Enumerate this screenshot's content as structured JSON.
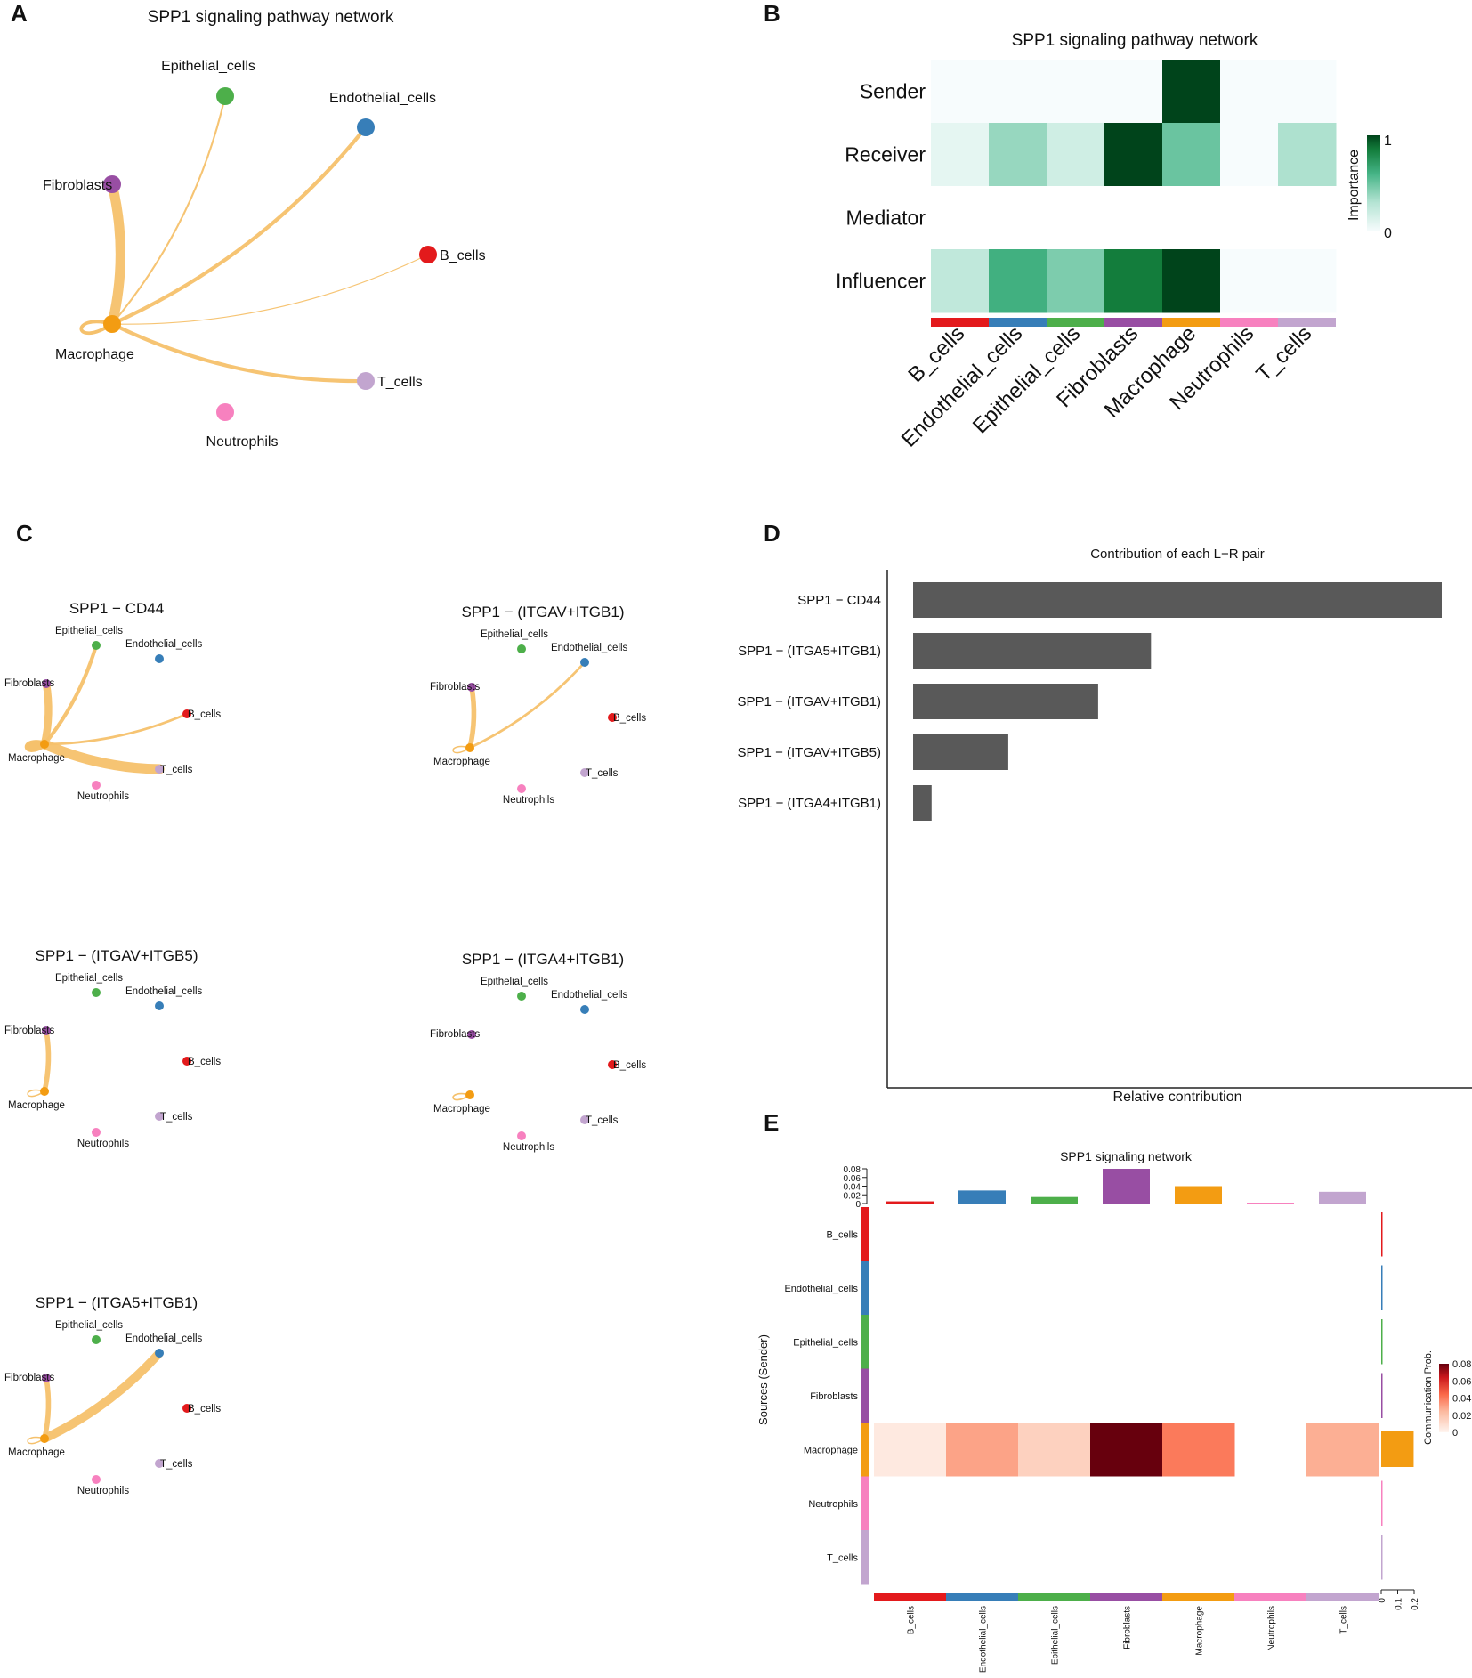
{
  "colors": {
    "B_cells": "#e31a1c",
    "Endothelial_cells": "#377eb8",
    "Epithelial_cells": "#4daf4a",
    "Fibroblasts": "#984ea3",
    "Macrophage": "#f39c12",
    "Neutrophils": "#f781bf",
    "T_cells": "#c2a5cf",
    "edge": "#f5c16c",
    "bar": "#595959"
  },
  "panel_letters": {
    "A": "A",
    "B": "B",
    "C": "C",
    "D": "D",
    "E": "E"
  },
  "chart_data": [
    {
      "panel": "A",
      "type": "network",
      "title": "SPP1 signaling pathway network",
      "nodes": [
        "Epithelial_cells",
        "Endothelial_cells",
        "Fibroblasts",
        "B_cells",
        "Macrophage",
        "T_cells",
        "Neutrophils"
      ],
      "edges": [
        {
          "source": "Macrophage",
          "target": "Fibroblasts",
          "weight": 0.08
        },
        {
          "source": "Macrophage",
          "target": "Endothelial_cells",
          "weight": 0.03
        },
        {
          "source": "Macrophage",
          "target": "Epithelial_cells",
          "weight": 0.015
        },
        {
          "source": "Macrophage",
          "target": "B_cells",
          "weight": 0.008
        },
        {
          "source": "Macrophage",
          "target": "T_cells",
          "weight": 0.03
        },
        {
          "source": "Macrophage",
          "target": "Macrophage",
          "weight": 0.045
        }
      ]
    },
    {
      "panel": "B",
      "type": "heatmap",
      "title": "SPP1 signaling pathway network",
      "rows": [
        "Sender",
        "Receiver",
        "Mediator",
        "Influencer"
      ],
      "columns": [
        "B_cells",
        "Endothelial_cells",
        "Epithelial_cells",
        "Fibroblasts",
        "Macrophage",
        "Neutrophils",
        "T_cells"
      ],
      "values": [
        [
          0,
          0,
          0,
          0,
          1,
          0,
          0
        ],
        [
          0.08,
          0.38,
          0.18,
          1,
          0.5,
          0,
          0.32
        ],
        [
          0,
          0,
          0,
          0,
          0,
          0,
          0
        ],
        [
          0.25,
          0.62,
          0.45,
          0.85,
          1,
          0,
          0
        ]
      ],
      "legend_title": "Importance",
      "legend_min": "0",
      "legend_max": "1"
    },
    {
      "panel": "C",
      "type": "network_grid",
      "subplots": [
        {
          "title": "SPP1 − CD44",
          "edges": [
            {
              "source": "Macrophage",
              "target": "Fibroblasts",
              "weight": 0.06
            },
            {
              "source": "Macrophage",
              "target": "Epithelial_cells",
              "weight": 0.03
            },
            {
              "source": "Macrophage",
              "target": "B_cells",
              "weight": 0.02
            },
            {
              "source": "Macrophage",
              "target": "T_cells",
              "weight": 0.08
            },
            {
              "source": "Macrophage",
              "target": "Macrophage",
              "weight": 0.08
            }
          ]
        },
        {
          "title": "SPP1 − (ITGAV+ITGB1)",
          "edges": [
            {
              "source": "Macrophage",
              "target": "Fibroblasts",
              "weight": 0.04
            },
            {
              "source": "Macrophage",
              "target": "Endothelial_cells",
              "weight": 0.02
            },
            {
              "source": "Macrophage",
              "target": "Macrophage",
              "weight": 0.01
            }
          ]
        },
        {
          "title": "SPP1 − (ITGAV+ITGB5)",
          "edges": [
            {
              "source": "Macrophage",
              "target": "Fibroblasts",
              "weight": 0.04
            },
            {
              "source": "Macrophage",
              "target": "Macrophage",
              "weight": 0.01
            }
          ]
        },
        {
          "title": "SPP1 − (ITGA4+ITGB1)",
          "edges": [
            {
              "source": "Macrophage",
              "target": "Macrophage",
              "weight": 0.02
            }
          ]
        },
        {
          "title": "SPP1 − (ITGA5+ITGB1)",
          "edges": [
            {
              "source": "Macrophage",
              "target": "Fibroblasts",
              "weight": 0.04
            },
            {
              "source": "Macrophage",
              "target": "Endothelial_cells",
              "weight": 0.07
            },
            {
              "source": "Macrophage",
              "target": "Macrophage",
              "weight": 0.01
            }
          ]
        }
      ]
    },
    {
      "panel": "D",
      "type": "bar",
      "orientation": "horizontal",
      "title": "Contribution of each L−R pair",
      "xlabel": "Relative contribution",
      "categories": [
        "SPP1 − CD44",
        "SPP1 − (ITGA5+ITGB1)",
        "SPP1 − (ITGAV+ITGB1)",
        "SPP1 − (ITGAV+ITGB5)",
        "SPP1 − (ITGA4+ITGB1)"
      ],
      "values": [
        1.0,
        0.45,
        0.35,
        0.18,
        0.035
      ],
      "xlim": [
        0,
        1
      ]
    },
    {
      "panel": "E",
      "type": "heatmap",
      "title": "SPP1 signaling network",
      "ylabel": "Sources (Sender)",
      "rows": [
        "B_cells",
        "Endothelial_cells",
        "Epithelial_cells",
        "Fibroblasts",
        "Macrophage",
        "Neutrophils",
        "T_cells"
      ],
      "columns": [
        "B_cells",
        "Endothelial_cells",
        "Epithelial_cells",
        "Fibroblasts",
        "Macrophage",
        "Neutrophils",
        "T_cells"
      ],
      "values": [
        [
          0,
          0,
          0,
          0,
          0,
          0,
          0
        ],
        [
          0,
          0,
          0,
          0,
          0,
          0,
          0
        ],
        [
          0,
          0,
          0,
          0,
          0,
          0,
          0
        ],
        [
          0,
          0,
          0,
          0,
          0,
          0,
          0
        ],
        [
          0.005,
          0.03,
          0.015,
          0.08,
          0.04,
          0,
          0.027
        ],
        [
          0,
          0,
          0,
          0,
          0,
          0,
          0
        ],
        [
          0,
          0,
          0,
          0,
          0,
          0,
          0
        ]
      ],
      "top_bar_values": [
        0.005,
        0.03,
        0.015,
        0.08,
        0.04,
        0.001,
        0.027
      ],
      "top_ticks": [
        "0",
        "0.02",
        "0.04",
        "0.06",
        "0.08"
      ],
      "right_bar_values": [
        0.002,
        0.002,
        0.002,
        0.002,
        0.197,
        0.002,
        0.002
      ],
      "right_ticks": [
        "0",
        "0.1",
        "0.2"
      ],
      "legend_title": "Communication Prob.",
      "legend_ticks": [
        "0",
        "0.02",
        "0.04",
        "0.06",
        "0.08"
      ]
    }
  ]
}
